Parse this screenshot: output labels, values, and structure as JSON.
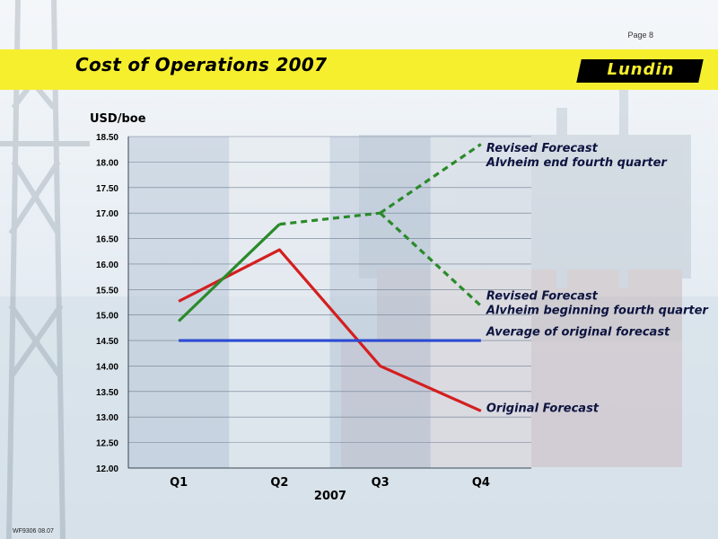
{
  "page": {
    "number": "Page 8",
    "footer_code": "WF9306 08.07"
  },
  "header": {
    "title": "Cost of Operations 2007",
    "logo_text": "Lundin"
  },
  "colors": {
    "banner": "#f6ef2e",
    "original_forecast": "#d41f1f",
    "revised_forecast": "#2a8a2a",
    "average_line": "#2c4bd1"
  },
  "chart_data": {
    "type": "line",
    "title": "",
    "ylabel": "USD/boe",
    "xlabel": "2007",
    "ylim": [
      12.0,
      18.5
    ],
    "ytick_step": 0.5,
    "categories": [
      "Q1",
      "Q2",
      "Q3",
      "Q4"
    ],
    "grid": true,
    "series": [
      {
        "name": "Original Forecast",
        "style": "solid",
        "color": "#d41f1f",
        "x": [
          "Q1",
          "Q2",
          "Q3",
          "Q4"
        ],
        "values": [
          15.27,
          16.28,
          14.0,
          13.12
        ]
      },
      {
        "name": "",
        "style": "solid",
        "color": "#2a8a2a",
        "x": [
          "Q1",
          "Q2"
        ],
        "values": [
          14.88,
          16.78
        ]
      },
      {
        "name": "",
        "style": "dashed",
        "color": "#2a8a2a",
        "x": [
          "Q2",
          "Q3"
        ],
        "values": [
          16.78,
          17.0
        ]
      },
      {
        "name": "Revised Forecast Alvheim end fourth quarter",
        "style": "dashed",
        "color": "#2a8a2a",
        "x": [
          "Q3",
          "Q4"
        ],
        "values": [
          17.0,
          18.35
        ]
      },
      {
        "name": "Revised Forecast Alvheim beginning fourth quarter",
        "style": "dashed",
        "color": "#2a8a2a",
        "x": [
          "Q3",
          "Q4"
        ],
        "values": [
          17.0,
          15.18
        ]
      },
      {
        "name": "Average of original forecast",
        "style": "solid",
        "color": "#2c4bd1",
        "x": [
          "Q1",
          "Q4"
        ],
        "values": [
          14.5,
          14.5
        ]
      }
    ],
    "annotations": [
      {
        "lines": [
          "Revised Forecast",
          "Alvheim end fourth quarter"
        ],
        "anchor": "Q4",
        "y": 18.2
      },
      {
        "lines": [
          "Revised Forecast",
          "Alvheim beginning fourth quarter"
        ],
        "anchor": "Q4",
        "y": 15.3
      },
      {
        "lines": [
          "Average of original forecast"
        ],
        "anchor": "Q4",
        "y": 14.6
      },
      {
        "lines": [
          "Original Forecast"
        ],
        "anchor": "Q4",
        "y": 13.1
      }
    ]
  }
}
